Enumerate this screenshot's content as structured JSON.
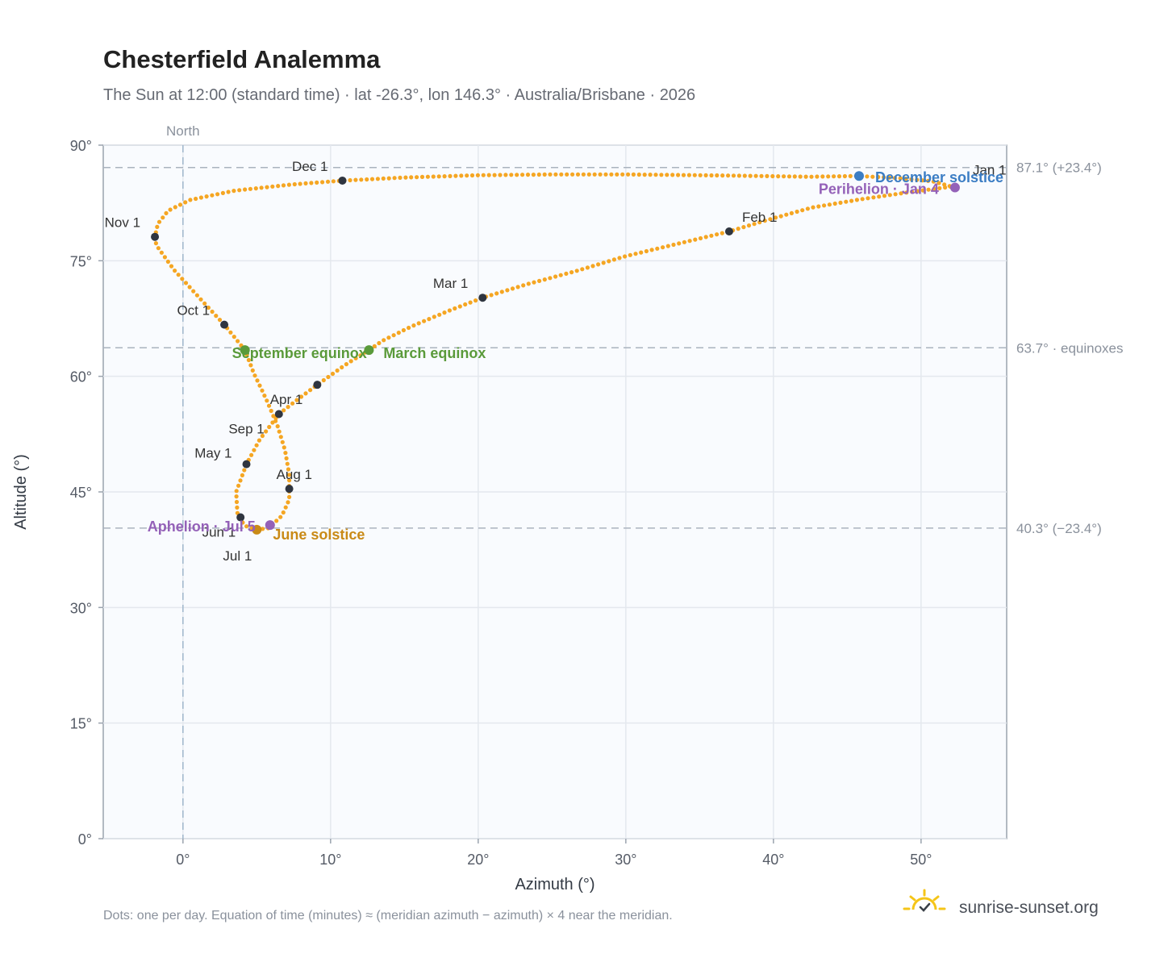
{
  "chart_data": {
    "type": "scatter",
    "title": "Chesterfield Analemma",
    "subtitle": "The Sun at 12:00 (standard time) · lat -26.3°, lon 146.3° · Australia/Brisbane · 2026",
    "xlabel": "Azimuth (°)",
    "ylabel": "Altitude (°)",
    "xlim": [
      -5.4,
      55.8
    ],
    "ylim": [
      0,
      90
    ],
    "x_ticks": [
      {
        "value": 0,
        "label": "0°"
      },
      {
        "value": 10,
        "label": "10°"
      },
      {
        "value": 20,
        "label": "20°"
      },
      {
        "value": 30,
        "label": "30°"
      },
      {
        "value": 40,
        "label": "40°"
      },
      {
        "value": 50,
        "label": "50°"
      }
    ],
    "y_ticks": [
      {
        "value": 0,
        "label": "0°"
      },
      {
        "value": 15,
        "label": "15°"
      },
      {
        "value": 30,
        "label": "30°"
      },
      {
        "value": 45,
        "label": "45°"
      },
      {
        "value": 60,
        "label": "60°"
      },
      {
        "value": 75,
        "label": "75°"
      },
      {
        "value": 90,
        "label": "90°"
      }
    ],
    "grid": true,
    "north_line": {
      "value": 0,
      "label": "North"
    },
    "reference_lines": [
      {
        "value": 87.1,
        "label": "87.1° (+23.4°)"
      },
      {
        "value": 63.7,
        "label": "63.7° · equinoxes"
      },
      {
        "value": 40.3,
        "label": "40.3° (−23.4°)"
      }
    ],
    "series": [
      {
        "color": "#f5a623",
        "points": [
          [
            52.0,
            84.6
          ],
          [
            49.2,
            83.9
          ],
          [
            46.0,
            83.0
          ],
          [
            42.6,
            81.9
          ],
          [
            39.6,
            80.3
          ],
          [
            37.0,
            78.8
          ],
          [
            33.5,
            77.2
          ],
          [
            30.0,
            75.6
          ],
          [
            26.7,
            73.7
          ],
          [
            23.4,
            72.0
          ],
          [
            20.3,
            70.2
          ],
          [
            18.0,
            68.5
          ],
          [
            15.5,
            66.5
          ],
          [
            13.5,
            64.6
          ],
          [
            12.6,
            63.4
          ],
          [
            11.0,
            61.5
          ],
          [
            9.1,
            58.9
          ],
          [
            7.7,
            56.9
          ],
          [
            6.5,
            55.1
          ],
          [
            5.2,
            51.8
          ],
          [
            4.3,
            48.6
          ],
          [
            3.6,
            45.0
          ],
          [
            3.7,
            42.0
          ],
          [
            4.2,
            40.6
          ],
          [
            5.0,
            40.1
          ],
          [
            5.8,
            40.3
          ],
          [
            6.7,
            41.9
          ],
          [
            7.2,
            44.0
          ],
          [
            7.2,
            45.4
          ],
          [
            7.2,
            47.3
          ],
          [
            6.9,
            50.5
          ],
          [
            6.4,
            53.6
          ],
          [
            5.6,
            57.2
          ],
          [
            4.8,
            60.4
          ],
          [
            4.2,
            63.4
          ],
          [
            2.8,
            66.7
          ],
          [
            1.2,
            70.0
          ],
          [
            -0.6,
            73.8
          ],
          [
            -1.8,
            77.0
          ],
          [
            -1.9,
            78.1
          ],
          [
            -1.7,
            79.8
          ],
          [
            -1.0,
            81.5
          ],
          [
            0.5,
            82.9
          ],
          [
            3.5,
            84.1
          ],
          [
            7.4,
            84.9
          ],
          [
            10.8,
            85.4
          ],
          [
            15.0,
            85.8
          ],
          [
            20.0,
            86.1
          ],
          [
            25.0,
            86.2
          ],
          [
            30.0,
            86.2
          ],
          [
            35.0,
            86.1
          ],
          [
            39.0,
            86.0
          ],
          [
            42.5,
            85.9
          ],
          [
            45.8,
            86.0
          ],
          [
            48.6,
            85.7
          ],
          [
            50.8,
            85.3
          ],
          [
            52.3,
            84.5
          ]
        ]
      }
    ],
    "month_markers": [
      {
        "label": "Jan 1",
        "x": 52.3,
        "y": 84.5
      },
      {
        "label": "Feb 1",
        "x": 37.0,
        "y": 78.8
      },
      {
        "label": "Mar 1",
        "x": 20.3,
        "y": 70.2
      },
      {
        "label": "Apr 1",
        "x": 9.1,
        "y": 58.9
      },
      {
        "label": "May 1",
        "x": 4.3,
        "y": 48.6
      },
      {
        "label": "Jun 1",
        "x": 3.9,
        "y": 41.7
      },
      {
        "label": "Jul 1",
        "x": 5.0,
        "y": 40.1
      },
      {
        "label": "Aug 1",
        "x": 7.2,
        "y": 45.4
      },
      {
        "label": "Sep 1",
        "x": 6.5,
        "y": 55.1
      },
      {
        "label": "Oct 1",
        "x": 2.8,
        "y": 66.7
      },
      {
        "label": "Nov 1",
        "x": -1.9,
        "y": 78.1
      },
      {
        "label": "Dec 1",
        "x": 10.8,
        "y": 85.4
      }
    ],
    "events": [
      {
        "label": "December solstice",
        "x": 45.8,
        "y": 86.0,
        "color": "#3b7dc4"
      },
      {
        "label": "Perihelion · Jan 4",
        "x": 52.3,
        "y": 84.5,
        "color": "#9461b8"
      },
      {
        "label": "March equinox",
        "x": 12.6,
        "y": 63.4,
        "color": "#5a9a3a"
      },
      {
        "label": "September equinox",
        "x": 4.2,
        "y": 63.4,
        "color": "#5a9a3a"
      },
      {
        "label": "June solstice",
        "x": 5.0,
        "y": 40.1,
        "color": "#c98a16"
      },
      {
        "label": "Aphelion · Jul 5",
        "x": 5.9,
        "y": 40.7,
        "color": "#9461b8"
      }
    ]
  },
  "footnote": "Dots: one per day. Equation of time (minutes) ≈ (meridian azimuth − azimuth) × 4 near the meridian.",
  "brand": {
    "name": "sunrise-sunset.org",
    "icon": "sun-logo-icon",
    "color": "#f5c518"
  }
}
